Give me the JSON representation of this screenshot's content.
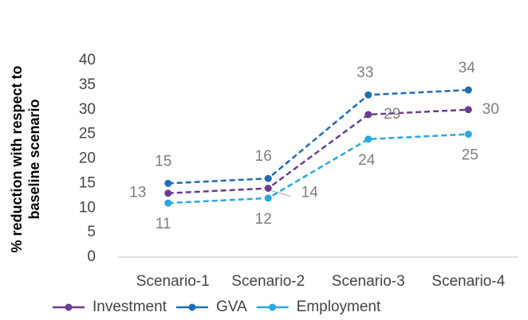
{
  "chart_data": {
    "type": "line",
    "y_label": [
      "% reduction with respect to",
      "baseline scenario"
    ],
    "categories": [
      "Scenario-1",
      "Scenario-2",
      "Scenario-3",
      "Scenario-4"
    ],
    "series": [
      {
        "name": "Investment",
        "color": "#6a3d8f",
        "values": [
          13,
          14,
          29,
          30
        ]
      },
      {
        "name": "GVA",
        "color": "#1f6db3",
        "values": [
          15,
          16,
          33,
          34
        ]
      },
      {
        "name": "Employment",
        "color": "#29a9df",
        "values": [
          11,
          12,
          24,
          25
        ]
      }
    ],
    "ylim": [
      0,
      40
    ],
    "yticks": [
      0,
      5,
      10,
      15,
      20,
      25,
      30,
      35,
      40
    ],
    "grid": false,
    "legend": "bottom"
  }
}
